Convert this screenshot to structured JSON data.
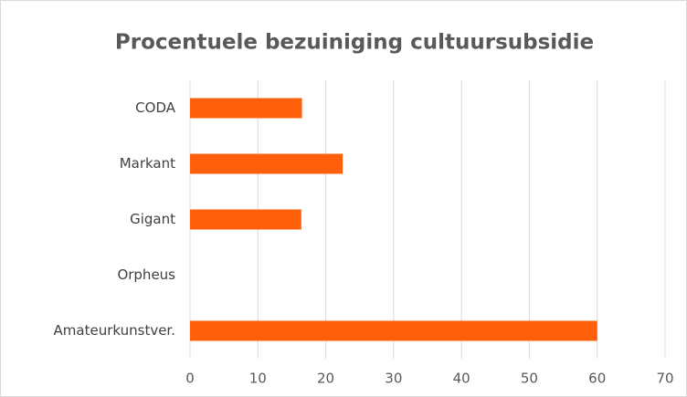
{
  "chart_data": {
    "type": "hbar",
    "title": "Procentuele bezuiniging cultuursubsidie",
    "categories": [
      "CODA",
      "Markant",
      "Gigant",
      "Orpheus",
      "Amateurkunstver."
    ],
    "values": [
      16.5,
      22.5,
      16.4,
      0,
      60
    ],
    "color": "#ff5f0a",
    "xlim": [
      0,
      70
    ],
    "xticks": [
      0,
      10,
      20,
      30,
      40,
      50,
      60,
      70
    ],
    "grid": true
  }
}
